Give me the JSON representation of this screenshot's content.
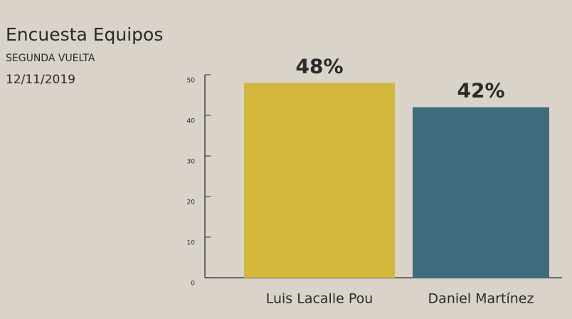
{
  "chart_data": {
    "type": "bar",
    "title": "Encuesta Equipos",
    "subtitle": "SEGUNDA VUELTA",
    "date": "12/11/2019",
    "categories": [
      "Luis Lacalle Pou",
      "Daniel Martínez"
    ],
    "values": [
      48,
      42
    ],
    "value_labels": [
      "48%",
      "42%"
    ],
    "colors": [
      "#d3b73c",
      "#3f6c7c"
    ],
    "ylim": [
      0,
      50
    ],
    "yticks": [
      0,
      10,
      20,
      30,
      40,
      50
    ]
  }
}
